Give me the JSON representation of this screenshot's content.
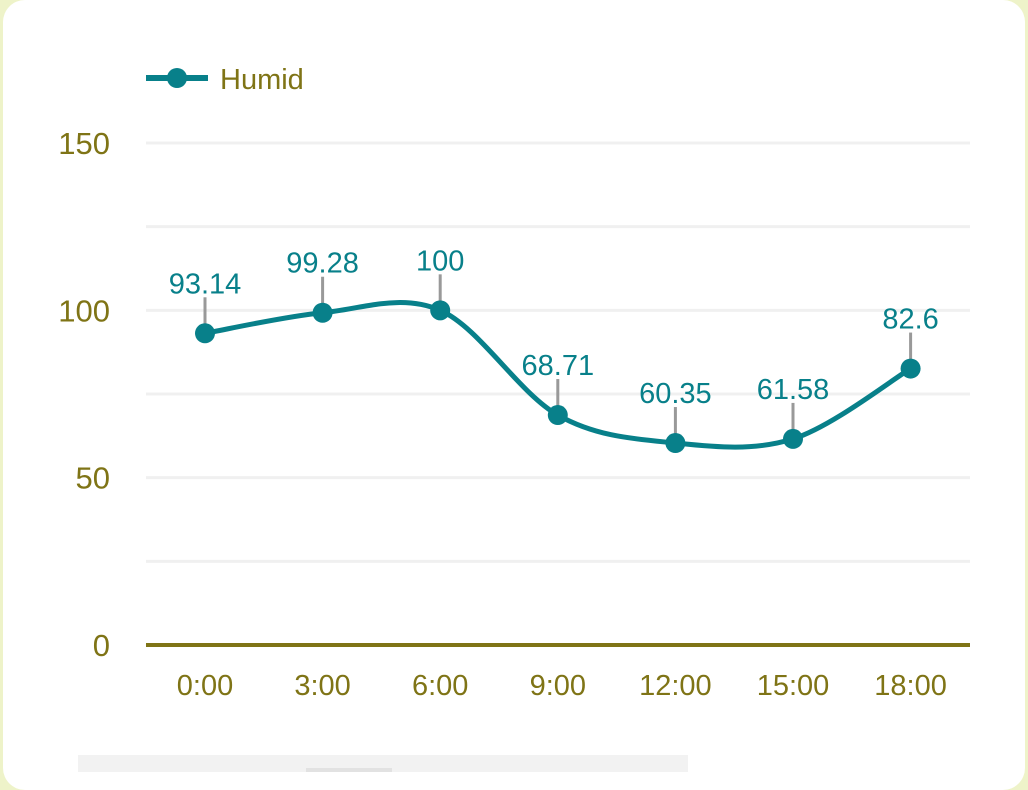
{
  "chart_data": {
    "type": "line",
    "categories": [
      "0:00",
      "3:00",
      "6:00",
      "9:00",
      "12:00",
      "15:00",
      "18:00"
    ],
    "series": [
      {
        "name": "Humid",
        "values": [
          93.14,
          99.28,
          100,
          68.71,
          60.35,
          61.58,
          82.6
        ],
        "labels": [
          "93.14",
          "99.28",
          "100",
          "68.71",
          "60.35",
          "61.58",
          "82.6"
        ]
      }
    ],
    "y_ticks": [
      "0",
      "50",
      "100",
      "150"
    ],
    "ylim": [
      0,
      150
    ],
    "grid": true,
    "smooth": true,
    "legend_position": "top-left",
    "colors": {
      "series": "#08808a",
      "axis_text": "#7f7416",
      "axis_line": "#7f7416",
      "grid": "#f0f0f0",
      "leader": "#999999",
      "background": "#eef3c9"
    }
  }
}
